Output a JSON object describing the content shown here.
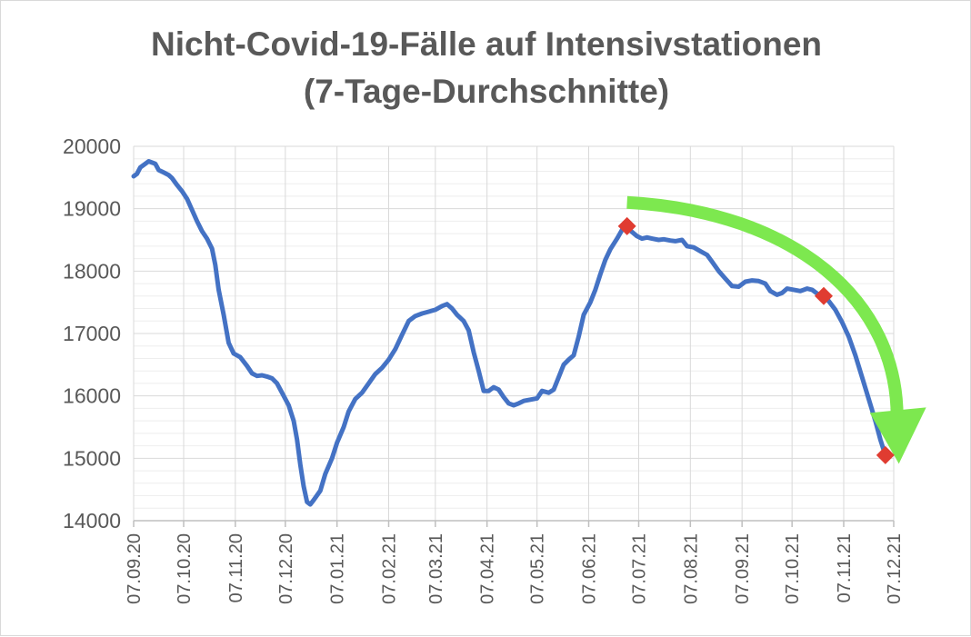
{
  "chart_data": {
    "type": "line",
    "title_lines": [
      "Nicht-Covid-19-Fälle auf Intensivstationen",
      "(7-Tage-Durchschnitte)"
    ],
    "xlabel": "",
    "ylabel": "",
    "ylim": [
      14000,
      20000
    ],
    "yticks": [
      14000,
      15000,
      16000,
      17000,
      18000,
      19000,
      20000
    ],
    "ytick_labels": [
      "14000",
      "15000",
      "16000",
      "17000",
      "18000",
      "19000",
      "20000"
    ],
    "xlim": [
      "2020-09-07",
      "2021-12-07"
    ],
    "xticks": [
      "2020-09-07",
      "2020-10-07",
      "2020-11-07",
      "2020-12-07",
      "2021-01-07",
      "2021-02-07",
      "2021-03-07",
      "2021-04-07",
      "2021-05-07",
      "2021-06-07",
      "2021-07-07",
      "2021-08-07",
      "2021-09-07",
      "2021-10-07",
      "2021-11-07",
      "2021-12-07"
    ],
    "xtick_labels": [
      "07.09.20",
      "07.10.20",
      "07.11.20",
      "07.12.20",
      "07.01.21",
      "07.02.21",
      "07.03.21",
      "07.04.21",
      "07.05.21",
      "07.06.21",
      "07.07.21",
      "07.08.21",
      "07.09.21",
      "07.10.21",
      "07.11.21",
      "07.12.21"
    ],
    "grid": true,
    "legend": "none",
    "series": [
      {
        "color": "#4472c4",
        "points": [
          [
            "2020-09-07",
            19520
          ],
          [
            "2020-09-09",
            19560
          ],
          [
            "2020-09-11",
            19660
          ],
          [
            "2020-09-14",
            19720
          ],
          [
            "2020-09-16",
            19760
          ],
          [
            "2020-09-18",
            19740
          ],
          [
            "2020-09-20",
            19720
          ],
          [
            "2020-09-22",
            19620
          ],
          [
            "2020-09-25",
            19580
          ],
          [
            "2020-09-28",
            19540
          ],
          [
            "2020-09-30",
            19490
          ],
          [
            "2020-10-03",
            19380
          ],
          [
            "2020-10-06",
            19280
          ],
          [
            "2020-10-09",
            19160
          ],
          [
            "2020-10-12",
            18980
          ],
          [
            "2020-10-15",
            18800
          ],
          [
            "2020-10-18",
            18640
          ],
          [
            "2020-10-21",
            18520
          ],
          [
            "2020-10-24",
            18360
          ],
          [
            "2020-10-26",
            18100
          ],
          [
            "2020-10-28",
            17700
          ],
          [
            "2020-10-31",
            17300
          ],
          [
            "2020-11-03",
            16850
          ],
          [
            "2020-11-06",
            16680
          ],
          [
            "2020-11-10",
            16620
          ],
          [
            "2020-11-14",
            16480
          ],
          [
            "2020-11-17",
            16360
          ],
          [
            "2020-11-20",
            16320
          ],
          [
            "2020-11-23",
            16330
          ],
          [
            "2020-11-26",
            16310
          ],
          [
            "2020-11-29",
            16280
          ],
          [
            "2020-12-02",
            16200
          ],
          [
            "2020-12-05",
            16050
          ],
          [
            "2020-12-09",
            15850
          ],
          [
            "2020-12-12",
            15600
          ],
          [
            "2020-12-14",
            15300
          ],
          [
            "2020-12-16",
            14900
          ],
          [
            "2020-12-18",
            14550
          ],
          [
            "2020-12-20",
            14300
          ],
          [
            "2020-12-22",
            14260
          ],
          [
            "2020-12-24",
            14330
          ],
          [
            "2020-12-28",
            14480
          ],
          [
            "2020-12-31",
            14750
          ],
          [
            "2021-01-04",
            15000
          ],
          [
            "2021-01-07",
            15250
          ],
          [
            "2021-01-11",
            15500
          ],
          [
            "2021-01-14",
            15750
          ],
          [
            "2021-01-18",
            15950
          ],
          [
            "2021-01-22",
            16050
          ],
          [
            "2021-01-26",
            16200
          ],
          [
            "2021-01-30",
            16350
          ],
          [
            "2021-02-03",
            16450
          ],
          [
            "2021-02-07",
            16580
          ],
          [
            "2021-02-11",
            16750
          ],
          [
            "2021-02-15",
            16980
          ],
          [
            "2021-02-19",
            17200
          ],
          [
            "2021-02-23",
            17280
          ],
          [
            "2021-02-27",
            17320
          ],
          [
            "2021-03-03",
            17350
          ],
          [
            "2021-03-07",
            17380
          ],
          [
            "2021-03-11",
            17440
          ],
          [
            "2021-03-14",
            17470
          ],
          [
            "2021-03-17",
            17400
          ],
          [
            "2021-03-20",
            17300
          ],
          [
            "2021-03-24",
            17200
          ],
          [
            "2021-03-27",
            17050
          ],
          [
            "2021-03-30",
            16700
          ],
          [
            "2021-04-02",
            16400
          ],
          [
            "2021-04-05",
            16080
          ],
          [
            "2021-04-08",
            16080
          ],
          [
            "2021-04-11",
            16140
          ],
          [
            "2021-04-14",
            16100
          ],
          [
            "2021-04-17",
            15980
          ],
          [
            "2021-04-20",
            15880
          ],
          [
            "2021-04-23",
            15850
          ],
          [
            "2021-04-26",
            15880
          ],
          [
            "2021-04-29",
            15920
          ],
          [
            "2021-05-03",
            15940
          ],
          [
            "2021-05-07",
            15960
          ],
          [
            "2021-05-10",
            16080
          ],
          [
            "2021-05-14",
            16050
          ],
          [
            "2021-05-17",
            16100
          ],
          [
            "2021-05-20",
            16300
          ],
          [
            "2021-05-23",
            16500
          ],
          [
            "2021-05-26",
            16580
          ],
          [
            "2021-05-29",
            16650
          ],
          [
            "2021-06-01",
            16950
          ],
          [
            "2021-06-04",
            17300
          ],
          [
            "2021-06-08",
            17500
          ],
          [
            "2021-06-11",
            17700
          ],
          [
            "2021-06-14",
            17950
          ],
          [
            "2021-06-17",
            18180
          ],
          [
            "2021-06-20",
            18350
          ],
          [
            "2021-06-24",
            18520
          ],
          [
            "2021-06-27",
            18660
          ],
          [
            "2021-06-30",
            18720
          ],
          [
            "2021-07-02",
            18650
          ],
          [
            "2021-07-06",
            18560
          ],
          [
            "2021-07-09",
            18520
          ],
          [
            "2021-07-12",
            18540
          ],
          [
            "2021-07-15",
            18520
          ],
          [
            "2021-07-19",
            18500
          ],
          [
            "2021-07-22",
            18510
          ],
          [
            "2021-07-26",
            18490
          ],
          [
            "2021-07-29",
            18480
          ],
          [
            "2021-08-02",
            18500
          ],
          [
            "2021-08-05",
            18400
          ],
          [
            "2021-08-09",
            18380
          ],
          [
            "2021-08-13",
            18320
          ],
          [
            "2021-08-17",
            18260
          ],
          [
            "2021-08-20",
            18150
          ],
          [
            "2021-08-24",
            18000
          ],
          [
            "2021-08-28",
            17880
          ],
          [
            "2021-09-01",
            17760
          ],
          [
            "2021-09-05",
            17750
          ],
          [
            "2021-09-09",
            17830
          ],
          [
            "2021-09-13",
            17850
          ],
          [
            "2021-09-17",
            17840
          ],
          [
            "2021-09-21",
            17800
          ],
          [
            "2021-09-24",
            17680
          ],
          [
            "2021-09-28",
            17620
          ],
          [
            "2021-10-01",
            17650
          ],
          [
            "2021-10-04",
            17720
          ],
          [
            "2021-10-08",
            17700
          ],
          [
            "2021-10-12",
            17680
          ],
          [
            "2021-10-16",
            17720
          ],
          [
            "2021-10-19",
            17700
          ],
          [
            "2021-10-23",
            17620
          ],
          [
            "2021-10-26",
            17600
          ],
          [
            "2021-10-29",
            17520
          ],
          [
            "2021-11-02",
            17380
          ],
          [
            "2021-11-06",
            17180
          ],
          [
            "2021-11-10",
            16950
          ],
          [
            "2021-11-14",
            16650
          ],
          [
            "2021-11-18",
            16300
          ],
          [
            "2021-11-22",
            15950
          ],
          [
            "2021-11-26",
            15600
          ],
          [
            "2021-11-29",
            15300
          ],
          [
            "2021-12-02",
            15050
          ]
        ]
      }
    ],
    "markers": [
      {
        "x": "2021-06-30",
        "y": 18720,
        "color": "#e03c31"
      },
      {
        "x": "2021-10-26",
        "y": 17600,
        "color": "#e03c31"
      },
      {
        "x": "2021-12-02",
        "y": 15050,
        "color": "#e03c31"
      }
    ],
    "annotations": [
      {
        "type": "arrow",
        "color": "#7de84f",
        "from": {
          "x": "2021-06-30",
          "y": 19100
        },
        "to": {
          "x": "2021-12-09",
          "y": 15000
        }
      }
    ]
  }
}
